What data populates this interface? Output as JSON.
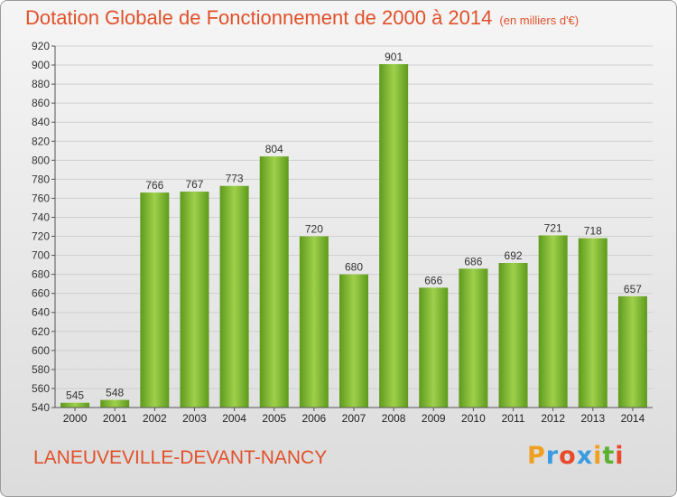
{
  "header": {
    "title": "Dotation Globale de Fonctionnement de 2000 à 2014",
    "unit": "(en milliers d'€)"
  },
  "footer": {
    "commune": "LANEUVEVILLE-DEVANT-NANCY",
    "logo": "Proxiti"
  },
  "colors": {
    "accent": "#e0512a",
    "bar_light": "#9fd04c",
    "bar_dark": "#5e9a1c"
  },
  "chart_data": {
    "type": "bar",
    "categories": [
      "2000",
      "2001",
      "2002",
      "2003",
      "2004",
      "2005",
      "2006",
      "2007",
      "2008",
      "2009",
      "2010",
      "2011",
      "2012",
      "2013",
      "2014"
    ],
    "values": [
      545,
      548,
      766,
      767,
      773,
      804,
      720,
      680,
      901,
      666,
      686,
      692,
      721,
      718,
      657
    ],
    "ylim": [
      540,
      920
    ],
    "yticks": [
      540,
      560,
      580,
      600,
      620,
      640,
      660,
      680,
      700,
      720,
      740,
      760,
      780,
      800,
      820,
      840,
      860,
      880,
      900,
      920
    ],
    "grid": true
  }
}
